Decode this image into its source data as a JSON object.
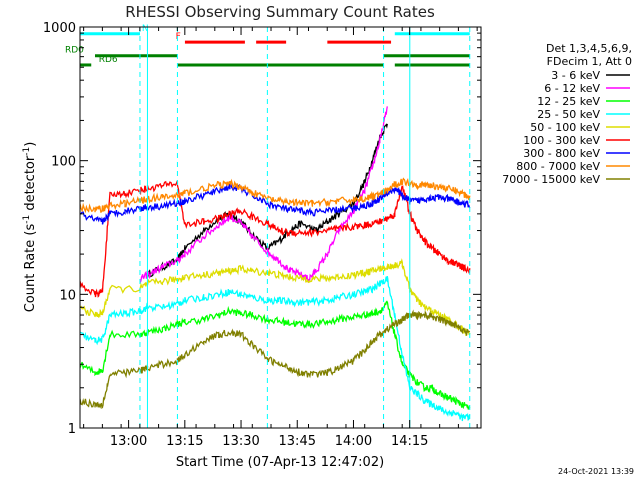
{
  "chart_data": {
    "type": "line",
    "title": "RHESSI Observing Summary Count Rates",
    "xlabel": "Start Time (07-Apr-13 12:47:02)",
    "ylabel_parts": [
      "Count Rate (s",
      "-1",
      " detector",
      "-1",
      ")"
    ],
    "footer": "24-Oct-2021 13:39",
    "x_unit": "minutes since 12:47:02",
    "xlim": [
      0,
      107
    ],
    "ylim": [
      1,
      1000
    ],
    "yscale": "log",
    "xticks": [
      {
        "label": "13:00",
        "t": 12.97
      },
      {
        "label": "14:15",
        "t": 87.97
      },
      {
        "label": "13:15",
        "t": 27.97
      },
      {
        "label": "13:30",
        "t": 42.97
      },
      {
        "label": "13:45",
        "t": 57.97
      },
      {
        "label": "14:00",
        "t": 72.97
      }
    ],
    "yticks": [
      {
        "label": "1",
        "v": 1
      },
      {
        "label": "10",
        "v": 10
      },
      {
        "label": "100",
        "v": 100
      },
      {
        "label": "1000",
        "v": 1000
      }
    ],
    "legend": {
      "header": [
        "Det 1,3,4,5,6,9,",
        "FDecim 1, Att 0"
      ],
      "entries": [
        {
          "label": "3 - 6 keV",
          "color": "#000000"
        },
        {
          "label": "6 - 12 keV",
          "color": "#ff00ff"
        },
        {
          "label": "12 - 25 keV",
          "color": "#00ff00"
        },
        {
          "label": "25 - 50 keV",
          "color": "#00ffff"
        },
        {
          "label": "50 - 100 keV",
          "color": "#dddd00"
        },
        {
          "label": "100 - 300 keV",
          "color": "#ff0000"
        },
        {
          "label": "300 - 800 keV",
          "color": "#0000ff"
        },
        {
          "label": "800 - 7000 keV",
          "color": "#ff8800"
        },
        {
          "label": "7000 - 15000 keV",
          "color": "#808000"
        }
      ]
    },
    "flags": [
      {
        "name": "N",
        "color": "#00ffff",
        "segments": [
          [
            0,
            16
          ],
          [
            84,
            104
          ]
        ],
        "label_t": 16.5,
        "level": 890
      },
      {
        "name": "F",
        "color": "#ff0000",
        "segments": [
          [
            28,
            44
          ],
          [
            47,
            55
          ],
          [
            66,
            83
          ]
        ],
        "label_t": 25.5,
        "level": 770
      },
      {
        "name": "RD0",
        "color": "#008000",
        "segments": [
          [
            4,
            26
          ],
          [
            81,
            104
          ]
        ],
        "label_t": -4,
        "level": 610
      },
      {
        "name": "RD6",
        "color": "#008000",
        "segments": [
          [
            0,
            3
          ],
          [
            26,
            50
          ],
          [
            50,
            81
          ],
          [
            84,
            104
          ]
        ],
        "label_t": 5,
        "level": 520
      }
    ],
    "vlines": [
      {
        "t": 18,
        "style": "solid"
      },
      {
        "t": 16,
        "style": "dashed"
      },
      {
        "t": 26,
        "style": "dashed"
      },
      {
        "t": 50,
        "style": "dashed"
      },
      {
        "t": 81,
        "style": "dashed"
      },
      {
        "t": 88,
        "style": "solid"
      },
      {
        "t": 104,
        "style": "dashed"
      }
    ],
    "series": [
      {
        "name": "3 - 6 keV",
        "color": "#000000",
        "x": [
          7,
          12,
          16,
          18,
          22,
          26,
          28,
          33,
          37,
          40,
          43,
          46,
          50,
          53,
          56,
          59,
          63,
          66,
          69,
          73,
          76,
          78,
          80,
          82
        ],
        "values": [
          null,
          null,
          null,
          14,
          16,
          18,
          22,
          30,
          37,
          40,
          35,
          28,
          22,
          25,
          30,
          34,
          30,
          35,
          40,
          48,
          70,
          100,
          150,
          190
        ]
      },
      {
        "name": "6 - 12 keV",
        "color": "#ff00ff",
        "x": [
          16,
          18,
          22,
          26,
          28,
          33,
          37,
          40,
          43,
          46,
          50,
          53,
          56,
          59,
          61,
          63,
          66,
          69,
          73,
          76,
          78,
          80,
          82
        ],
        "values": [
          13,
          14,
          16,
          18,
          20,
          27,
          33,
          38,
          34,
          27,
          21,
          18,
          15,
          14,
          13,
          15,
          20,
          30,
          42,
          60,
          90,
          140,
          250
        ]
      },
      {
        "name": "12 - 25 keV",
        "color": "#00ff00",
        "x": [
          0,
          4,
          6,
          8,
          16,
          18,
          22,
          26,
          28,
          33,
          37,
          40,
          43,
          46,
          50,
          53,
          56,
          59,
          62,
          66,
          69,
          73,
          76,
          78,
          80,
          82,
          84,
          86,
          88,
          90,
          92,
          94,
          96,
          98,
          100,
          102,
          104
        ],
        "values": [
          3,
          2.6,
          2.7,
          5,
          5,
          5.2,
          5.5,
          6,
          6.2,
          6.5,
          7,
          7.5,
          7.2,
          7,
          6.5,
          6.3,
          6.1,
          6,
          6,
          6.2,
          6.5,
          6.8,
          7,
          7.2,
          7.5,
          8.5,
          5,
          3,
          2.5,
          2.2,
          2,
          2,
          1.8,
          1.7,
          1.6,
          1.5,
          1.4
        ]
      },
      {
        "name": "25 - 50 keV",
        "color": "#00ffff",
        "x": [
          0,
          4,
          6,
          8,
          12,
          16,
          18,
          22,
          26,
          28,
          33,
          37,
          40,
          43,
          46,
          50,
          53,
          56,
          59,
          62,
          66,
          69,
          73,
          76,
          78,
          80,
          82,
          84,
          86,
          88,
          90,
          92,
          94,
          96,
          98,
          100,
          102,
          104
        ],
        "values": [
          5,
          4.5,
          4.6,
          7,
          7.2,
          7.5,
          8,
          8,
          8.5,
          9,
          9.5,
          10,
          10.5,
          10,
          9.5,
          9,
          9,
          8.8,
          8.7,
          8.8,
          9,
          9.5,
          10,
          10.5,
          11,
          12,
          13,
          7,
          3.5,
          2,
          1.8,
          1.6,
          1.5,
          1.4,
          1.3,
          1.3,
          1.2,
          1.2
        ]
      },
      {
        "name": "50 - 100 keV",
        "color": "#dddd00",
        "x": [
          0,
          4,
          6,
          8,
          16,
          18,
          22,
          26,
          28,
          33,
          37,
          40,
          43,
          46,
          50,
          53,
          56,
          59,
          62,
          66,
          69,
          73,
          76,
          78,
          80,
          82,
          84,
          86,
          88,
          90,
          92,
          94,
          96,
          98,
          100,
          102,
          104
        ],
        "values": [
          8,
          7,
          7.2,
          11,
          11,
          12,
          12.5,
          13,
          13.5,
          14,
          14.5,
          15,
          15.5,
          15,
          14.5,
          14,
          13.5,
          13.2,
          13,
          13.2,
          13.5,
          14,
          14.5,
          15,
          15.5,
          16,
          16.5,
          17,
          11,
          9,
          8,
          7.5,
          7,
          6.5,
          6,
          5.5,
          5
        ]
      },
      {
        "name": "100 - 300 keV",
        "color": "#ff0000",
        "x": [
          0,
          4,
          6,
          8,
          12,
          16,
          18,
          22,
          26,
          28,
          33,
          37,
          40,
          43,
          46,
          50,
          53,
          56,
          59,
          62,
          66,
          69,
          73,
          76,
          78,
          80,
          82,
          84,
          86,
          88,
          90,
          92,
          94,
          96,
          98,
          100,
          102,
          104
        ],
        "values": [
          12,
          10,
          10.5,
          55,
          57,
          60,
          62,
          65,
          68,
          33,
          35,
          37,
          40,
          42,
          38,
          34,
          30,
          29,
          29,
          29,
          30,
          31,
          32,
          33,
          34,
          35,
          37,
          40,
          65,
          40,
          30,
          25,
          22,
          20,
          18,
          17,
          16,
          15
        ]
      },
      {
        "name": "300 - 800 keV",
        "color": "#0000ff",
        "x": [
          0,
          4,
          6,
          8,
          12,
          16,
          18,
          22,
          26,
          28,
          33,
          37,
          40,
          43,
          46,
          50,
          53,
          56,
          59,
          62,
          66,
          69,
          73,
          76,
          78,
          80,
          82,
          84,
          86,
          88,
          90,
          92,
          94,
          96,
          98,
          100,
          102,
          104
        ],
        "values": [
          40,
          36,
          35,
          40,
          42,
          44,
          45,
          46,
          48,
          50,
          55,
          60,
          64,
          62,
          55,
          48,
          45,
          43,
          42,
          41,
          42,
          43,
          44,
          46,
          48,
          52,
          57,
          62,
          55,
          50,
          50,
          52,
          53,
          53,
          52,
          50,
          48,
          46
        ]
      },
      {
        "name": "800 - 7000 keV",
        "color": "#ff8800",
        "x": [
          0,
          4,
          6,
          8,
          12,
          16,
          18,
          22,
          26,
          28,
          33,
          37,
          40,
          43,
          46,
          50,
          53,
          56,
          59,
          62,
          66,
          69,
          73,
          76,
          78,
          80,
          82,
          84,
          86,
          88,
          90,
          92,
          94,
          96,
          98,
          100,
          102,
          104
        ],
        "values": [
          45,
          43,
          44,
          46,
          48,
          50,
          52,
          53,
          55,
          57,
          62,
          66,
          67,
          64,
          58,
          52,
          50,
          49,
          48,
          48,
          49,
          50,
          51,
          52,
          54,
          56,
          60,
          66,
          70,
          68,
          66,
          66,
          65,
          64,
          62,
          60,
          57,
          53
        ]
      },
      {
        "name": "7000 - 15000 keV",
        "color": "#808000",
        "x": [
          0,
          4,
          6,
          8,
          12,
          16,
          18,
          22,
          26,
          28,
          33,
          37,
          40,
          43,
          46,
          50,
          53,
          56,
          59,
          62,
          66,
          69,
          73,
          76,
          78,
          80,
          82,
          84,
          86,
          88,
          90,
          92,
          94,
          96,
          98,
          100,
          102,
          104
        ],
        "values": [
          1.6,
          1.5,
          1.5,
          2.5,
          2.6,
          2.7,
          2.8,
          3,
          3.2,
          3.5,
          4.5,
          5,
          5.2,
          5,
          4.2,
          3.3,
          3,
          2.8,
          2.6,
          2.5,
          2.6,
          2.8,
          3.2,
          3.8,
          4.5,
          5,
          5.5,
          6,
          6.5,
          7,
          7,
          7,
          6.8,
          6.5,
          6.2,
          6,
          5.5,
          5
        ]
      }
    ]
  }
}
